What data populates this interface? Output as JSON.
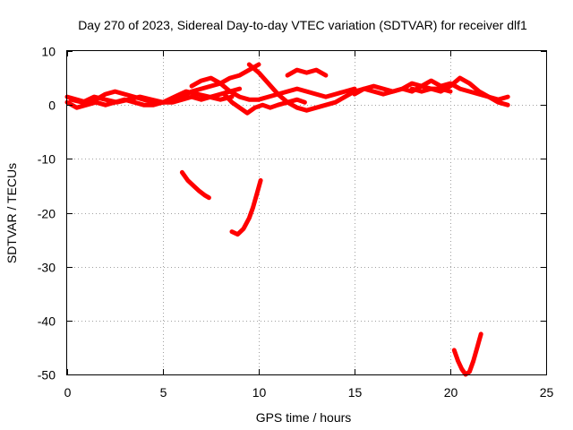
{
  "chart_data": {
    "type": "line",
    "title": "Day 270 of 2023, Sidereal Day-to-day VTEC variation (SDTVAR) for receiver dlf1",
    "xlabel": "GPS time / hours",
    "ylabel": "SDTVAR / TECUs",
    "xlim": [
      0,
      25
    ],
    "ylim": [
      -50,
      10
    ],
    "xticks": [
      0,
      5,
      10,
      15,
      20,
      25
    ],
    "yticks": [
      10,
      0,
      -10,
      -20,
      -30,
      -40,
      -50
    ],
    "xtick_labels": [
      "0",
      "5",
      "10",
      "15",
      "20",
      "25"
    ],
    "ytick_labels": [
      "10",
      "0",
      "-10",
      "-20",
      "-30",
      "-40",
      "-50"
    ],
    "grid": true,
    "series_color": "#ff0000",
    "series": [
      {
        "x": [
          0.0,
          0.5,
          1.0,
          1.5,
          2.0,
          2.5,
          3.0,
          3.5,
          4.0,
          4.5,
          5.0,
          5.5,
          6.0,
          6.5,
          7.0,
          7.5,
          8.0,
          8.5,
          9.0,
          9.5,
          10.0
        ],
        "y": [
          1.5,
          1.0,
          0.5,
          1.0,
          2.0,
          2.5,
          2.0,
          1.5,
          1.0,
          0.5,
          0.5,
          1.0,
          1.5,
          2.5,
          3.0,
          3.5,
          4.0,
          5.0,
          5.5,
          6.5,
          7.5
        ]
      },
      {
        "x": [
          0.0,
          0.5,
          1.0,
          1.5,
          2.0,
          2.5,
          3.0,
          3.5,
          4.0,
          4.5,
          5.0,
          5.5,
          6.0,
          6.5,
          7.0,
          7.5,
          8.0,
          8.5,
          9.0
        ],
        "y": [
          0.5,
          -0.5,
          0.0,
          0.5,
          0.0,
          0.5,
          1.0,
          0.5,
          0.0,
          0.0,
          0.5,
          0.5,
          1.0,
          1.5,
          1.0,
          1.5,
          2.0,
          2.5,
          3.0
        ]
      },
      {
        "x": [
          0.2,
          0.8,
          1.4,
          2.0,
          2.6,
          3.2,
          3.8,
          4.4,
          5.0,
          5.6,
          6.2,
          6.8,
          7.4,
          8.0,
          8.6
        ],
        "y": [
          1.0,
          0.5,
          1.5,
          1.0,
          0.5,
          1.0,
          1.5,
          1.0,
          0.5,
          1.5,
          2.5,
          2.0,
          1.5,
          1.0,
          1.5
        ]
      },
      {
        "x": [
          6.5,
          7.0,
          7.5,
          8.0,
          8.5,
          9.0,
          9.5,
          10.0,
          10.5,
          11.0,
          11.5,
          12.0,
          12.5,
          13.0,
          13.5,
          14.0,
          14.5,
          15.0
        ],
        "y": [
          3.5,
          4.5,
          5.0,
          4.0,
          2.5,
          1.5,
          1.0,
          1.0,
          1.5,
          2.0,
          2.5,
          3.0,
          2.5,
          2.0,
          1.5,
          2.0,
          2.5,
          3.0
        ]
      },
      {
        "x": [
          9.5,
          10.0,
          10.5,
          11.0,
          11.5,
          12.0,
          12.5,
          13.0,
          13.5,
          14.0,
          14.5,
          15.0,
          15.5,
          16.0,
          16.5,
          17.0,
          17.5,
          18.0,
          18.5,
          19.0,
          19.5,
          20.0
        ],
        "y": [
          7.5,
          6.0,
          4.0,
          2.0,
          0.5,
          -0.5,
          -1.0,
          -0.5,
          0.0,
          0.5,
          1.5,
          2.5,
          3.0,
          2.5,
          2.0,
          2.5,
          3.0,
          2.5,
          3.5,
          3.0,
          3.0,
          2.5
        ]
      },
      {
        "x": [
          8.2,
          8.6,
          9.0,
          9.4,
          9.8,
          10.2,
          10.6,
          11.0,
          11.5,
          12.0,
          12.4
        ],
        "y": [
          2.0,
          0.5,
          -0.5,
          -1.5,
          -0.5,
          0.0,
          -0.5,
          0.0,
          0.5,
          1.0,
          0.5
        ]
      },
      {
        "x": [
          11.5,
          12.0,
          12.5,
          13.0,
          13.5
        ],
        "y": [
          5.5,
          6.5,
          6.0,
          6.5,
          5.5
        ]
      },
      {
        "x": [
          15.0,
          15.5,
          16.0,
          16.5,
          17.0,
          17.5,
          18.0,
          18.5,
          19.0,
          19.5,
          20.0,
          20.5,
          21.0,
          21.5,
          22.0,
          22.5,
          23.0
        ],
        "y": [
          2.0,
          3.0,
          3.5,
          3.0,
          2.5,
          3.0,
          4.0,
          3.5,
          4.5,
          3.5,
          4.0,
          3.0,
          2.5,
          2.0,
          1.5,
          1.0,
          1.5
        ]
      },
      {
        "x": [
          18.0,
          18.5,
          19.0,
          19.5,
          20.0,
          20.5,
          21.0,
          21.5,
          22.0,
          22.5,
          23.0
        ],
        "y": [
          3.0,
          2.5,
          3.0,
          2.5,
          3.5,
          5.0,
          4.0,
          2.5,
          1.5,
          0.5,
          0.0
        ]
      },
      {
        "x": [
          6.0,
          6.3,
          6.6,
          6.9,
          7.2,
          7.4
        ],
        "y": [
          -12.5,
          -14.0,
          -15.0,
          -16.0,
          -16.8,
          -17.2
        ]
      },
      {
        "x": [
          8.6,
          8.9,
          9.2,
          9.5,
          9.7,
          9.9,
          10.1
        ],
        "y": [
          -23.5,
          -24.0,
          -23.0,
          -21.0,
          -19.0,
          -16.5,
          -14.0
        ]
      },
      {
        "x": [
          20.2,
          20.4,
          20.6,
          20.8,
          21.0,
          21.2,
          21.4,
          21.6
        ],
        "y": [
          -45.5,
          -47.5,
          -49.0,
          -50.0,
          -49.5,
          -47.5,
          -45.0,
          -42.5
        ]
      }
    ]
  }
}
